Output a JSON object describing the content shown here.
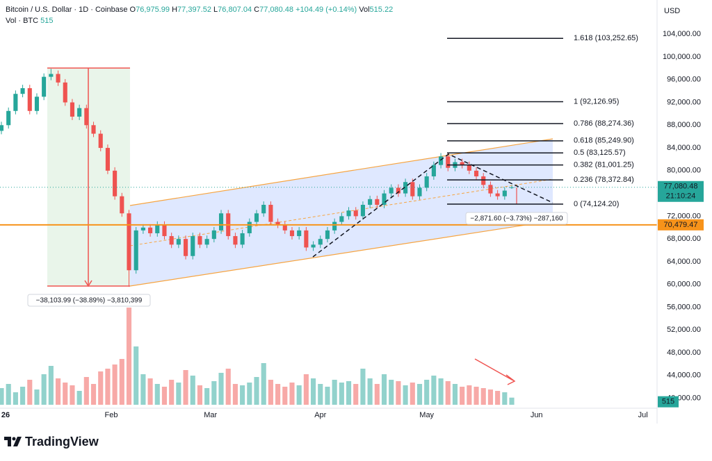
{
  "header": {
    "symbol": "Bitcoin / U.S. Dollar · 1D · Coinbase",
    "o": "O",
    "open": "76,975.99",
    "h": "H",
    "high": "77,397.52",
    "l": "L",
    "low": "76,807.04",
    "c": "C",
    "close": "77,080.48",
    "change": "+104.49 (+0.14%)",
    "vol": "Vol",
    "volume": "515.22",
    "vol_line": "Vol · BTC",
    "vol_value": "515"
  },
  "currency": "USD",
  "logo": "TradingView",
  "chart_data": {
    "type": "candlestick",
    "x": [
      0,
      2,
      4,
      6,
      8,
      10,
      12,
      14,
      16,
      18,
      20,
      22,
      24,
      26,
      28,
      30,
      32,
      34,
      36,
      38,
      40,
      42,
      44,
      46,
      48,
      50,
      52,
      54,
      56,
      58,
      60,
      62,
      64,
      66,
      68,
      70,
      72,
      74,
      76,
      78,
      80,
      82,
      84,
      86,
      88,
      90,
      92,
      94,
      96,
      98,
      100,
      102,
      104,
      106,
      108,
      110,
      112,
      114,
      116,
      118,
      120,
      122,
      124,
      126,
      128,
      130,
      132,
      134,
      136,
      138,
      140,
      142,
      144
    ],
    "open": [
      87000,
      88000,
      90500,
      93500,
      94500,
      90500,
      93000,
      96500,
      97000,
      95500,
      92000,
      89500,
      91000,
      88000,
      86500,
      84000,
      80000,
      75500,
      72500,
      62500,
      69500,
      70000,
      69000,
      70500,
      68500,
      67000,
      68000,
      65000,
      68500,
      67000,
      68000,
      69500,
      72500,
      68500,
      67000,
      69000,
      71000,
      72500,
      74000,
      71000,
      70500,
      69500,
      68500,
      69500,
      66500,
      67000,
      68000,
      69500,
      71000,
      72000,
      73000,
      72000,
      74000,
      75000,
      74000,
      76000,
      77000,
      76000,
      78000,
      75500,
      77000,
      79000,
      81000,
      82500,
      80500,
      81500,
      81000,
      80000,
      79000,
      77500,
      76000,
      75500,
      76975.99
    ],
    "high": [
      88600,
      91100,
      94100,
      95100,
      95100,
      93600,
      97100,
      97900,
      97600,
      96100,
      92600,
      91600,
      91600,
      88600,
      87100,
      84600,
      80600,
      76100,
      73100,
      70100,
      70600,
      70600,
      71100,
      71100,
      69100,
      68600,
      68600,
      69100,
      69100,
      68600,
      70100,
      73100,
      73100,
      69100,
      69600,
      71600,
      73100,
      74600,
      74600,
      71600,
      71100,
      70100,
      70100,
      70100,
      67600,
      68600,
      70100,
      71600,
      72600,
      73600,
      73600,
      74600,
      75600,
      75600,
      76600,
      77600,
      77600,
      78600,
      78600,
      77600,
      79600,
      81600,
      83100,
      83100,
      82100,
      82100,
      81600,
      80600,
      79600,
      78100,
      76600,
      77100,
      77397.52
    ],
    "low": [
      86400,
      87400,
      89900,
      92900,
      89900,
      89900,
      92400,
      95900,
      94900,
      91400,
      88900,
      88900,
      87400,
      85900,
      83400,
      79400,
      74900,
      71900,
      59600,
      61900,
      68900,
      68400,
      68400,
      67900,
      66400,
      66400,
      64400,
      64400,
      66400,
      66400,
      67400,
      68900,
      67900,
      66400,
      66400,
      68400,
      70400,
      71900,
      70400,
      69900,
      68900,
      67900,
      67900,
      65900,
      65900,
      66400,
      67400,
      68900,
      70400,
      71400,
      71400,
      71400,
      73400,
      73400,
      73400,
      75400,
      75400,
      75400,
      74900,
      74900,
      76400,
      78400,
      80400,
      79900,
      79900,
      80400,
      79400,
      78400,
      76900,
      75400,
      74900,
      74900,
      76807.04
    ],
    "close": [
      88000,
      90500,
      93500,
      94500,
      90500,
      93000,
      96500,
      97000,
      95500,
      92000,
      89500,
      91000,
      88000,
      86500,
      84000,
      80000,
      75500,
      72500,
      62500,
      69500,
      70000,
      69000,
      70500,
      68500,
      67000,
      68000,
      65000,
      68500,
      67000,
      68000,
      69500,
      72500,
      68500,
      67000,
      69000,
      71000,
      72500,
      74000,
      71000,
      70500,
      69500,
      68500,
      69500,
      66500,
      67000,
      68000,
      69500,
      71000,
      72000,
      73000,
      72000,
      74000,
      75000,
      74000,
      76000,
      77000,
      76000,
      78000,
      75500,
      77000,
      79000,
      81000,
      82500,
      80500,
      81500,
      81000,
      80000,
      79000,
      77500,
      76000,
      75500,
      76500,
      77080.48
    ],
    "volume": [
      1200,
      1500,
      900,
      1300,
      1800,
      1100,
      2200,
      2800,
      1900,
      1600,
      1400,
      1000,
      2000,
      1500,
      2400,
      2600,
      2900,
      3300,
      7000,
      4200,
      2200,
      1900,
      1500,
      1300,
      1800,
      1600,
      2500,
      2100,
      1400,
      1200,
      1700,
      2300,
      2600,
      1500,
      1400,
      1600,
      2000,
      3000,
      1800,
      1500,
      1300,
      1600,
      1400,
      2200,
      1900,
      1500,
      1300,
      1800,
      1600,
      1700,
      1500,
      2600,
      1900,
      1500,
      2200,
      1800,
      1700,
      1400,
      1600,
      1500,
      1800,
      2100,
      1900,
      1700,
      1500,
      1300,
      1400,
      1300,
      1200,
      1100,
      1000,
      900,
      515.22
    ],
    "up_color": "#26a69a",
    "down_color": "#ef5350",
    "xlim": [
      0,
      185
    ],
    "xticks": [
      {
        "value": 0,
        "label": "26"
      },
      {
        "value": 31,
        "label": "Feb"
      },
      {
        "value": 59,
        "label": "Mar"
      },
      {
        "value": 90,
        "label": "Apr"
      },
      {
        "value": 120,
        "label": "May"
      },
      {
        "value": 151,
        "label": "Jun"
      },
      {
        "value": 181,
        "label": "Jul"
      }
    ],
    "ylim": [
      38000,
      110000
    ],
    "yticks": [
      {
        "value": 104000,
        "label": "104,000.00"
      },
      {
        "value": 100000,
        "label": "100,000.00"
      },
      {
        "value": 96000,
        "label": "96,000.00"
      },
      {
        "value": 92000,
        "label": "92,000.00"
      },
      {
        "value": 88000,
        "label": "88,000.00"
      },
      {
        "value": 84000,
        "label": "84,000.00"
      },
      {
        "value": 80000,
        "label": "80,000.00"
      },
      {
        "value": 72000,
        "label": "72,000.00"
      },
      {
        "value": 68000,
        "label": "68,000.00"
      },
      {
        "value": 64000,
        "label": "64,000.00"
      },
      {
        "value": 60000,
        "label": "60,000.00"
      },
      {
        "value": 56000,
        "label": "56,000.00"
      },
      {
        "value": 52000,
        "label": "52,000.00"
      },
      {
        "value": 48000,
        "label": "48,000.00"
      },
      {
        "value": 44000,
        "label": "44,000.00"
      },
      {
        "value": 40000,
        "label": "40,000.00"
      }
    ],
    "volume_lim": [
      0,
      7500
    ],
    "grid": false,
    "fib_levels": [
      {
        "label": "1.618 (103,252.65)",
        "value": 103252.65
      },
      {
        "label": "1 (92,126.95)",
        "value": 92126.95
      },
      {
        "label": "0.786 (88,274.36)",
        "value": 88274.36
      },
      {
        "label": "0.618 (85,249.90)",
        "value": 85249.9
      },
      {
        "label": "0.5 (83,125.57)",
        "value": 83125.57
      },
      {
        "label": "0.382 (81,001.25)",
        "value": 81001.25
      },
      {
        "label": "0.236 (78,372.84)",
        "value": 78372.84
      },
      {
        "label": "0 (74,124.20)",
        "value": 74124.2
      }
    ],
    "support_line": {
      "value": 70479.47,
      "label": "70,479.47",
      "color": "#f7931a"
    },
    "last_price": {
      "value": 77080.48,
      "label": "77,080.48",
      "countdown": "21:10:24",
      "color": "#26a69a"
    },
    "measure_labels": [
      "−38,103.99 (−38.89%) −3,810,399",
      "−2,871.60 (−3.73%) −287,160"
    ]
  }
}
